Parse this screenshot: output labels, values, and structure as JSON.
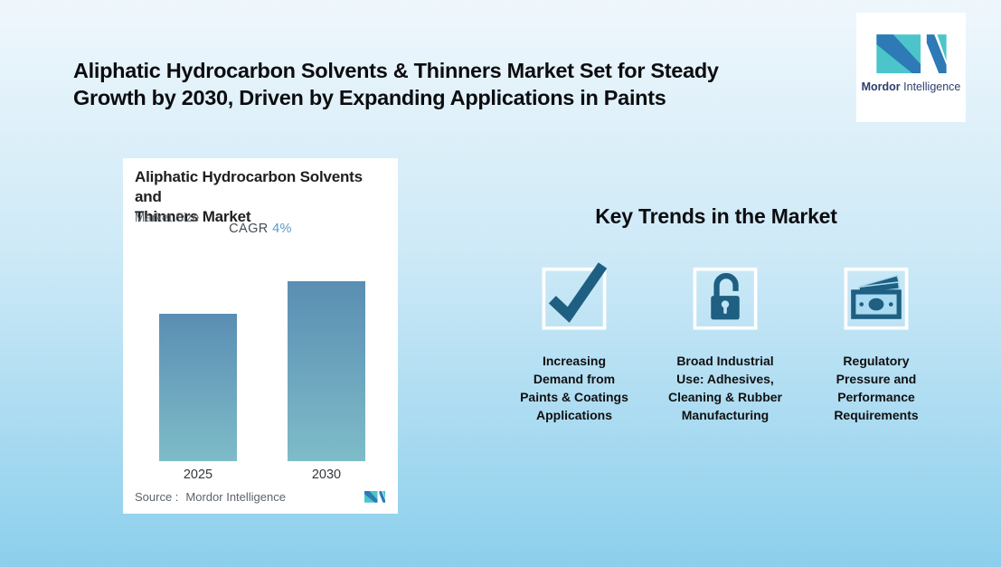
{
  "colors": {
    "bg-top": "#eff7fc",
    "bg-bottom": "#8ccfec",
    "icon-teal": "#1e5f82",
    "bar-top": "#5a8eb3",
    "bar-bottom": "#7ebcc8",
    "accent": "#5b9ac6",
    "logo-blue": "#2d7ab6",
    "logo-teal": "#4cc5ca",
    "logo-text": "#2e3e6e"
  },
  "header": {
    "title_lines": [
      "Aliphatic Hydrocarbon Solvents & Thinners Market Set for Steady",
      "Growth by 2030, Driven by Expanding Applications in Paints"
    ],
    "logo": {
      "name_bold": "Mordor",
      "name_regular": "Intelligence"
    }
  },
  "chart_card": {
    "title_lines": [
      "Aliphatic Hydrocarbon Solvents and",
      "Thinners Market"
    ],
    "subtitle": "Market Size",
    "cagr_label": "CAGR",
    "cagr_value": "4%",
    "source_label": "Source :",
    "source_value": "Mordor Intelligence"
  },
  "chart_data": {
    "type": "bar",
    "title": "Aliphatic Hydrocarbon Solvents and Thinners Market",
    "subtitle": "Market Size",
    "categories": [
      "2025",
      "2030"
    ],
    "values": [
      100,
      122
    ],
    "value_note": "no numeric axis shown; relative index where 2030 = 2025 x 1.04^5 (CAGR 4%)",
    "cagr": "4%",
    "xlabel": "",
    "ylabel": "",
    "legend": false,
    "grid": false,
    "bar_gradient": [
      "#5a8eb3",
      "#7ebcc8"
    ]
  },
  "trends": {
    "heading": "Key Trends in the Market",
    "items": [
      {
        "icon": "checkmark-icon",
        "label_lines": [
          "Increasing",
          "Demand from",
          "Paints & Coatings",
          "Applications"
        ]
      },
      {
        "icon": "open-lock-icon",
        "label_lines": [
          "Broad Industrial",
          "Use: Adhesives,",
          "Cleaning & Rubber",
          "Manufacturing"
        ]
      },
      {
        "icon": "money-icon",
        "label_lines": [
          "Regulatory",
          "Pressure and",
          "Performance",
          "Requirements"
        ]
      }
    ]
  }
}
